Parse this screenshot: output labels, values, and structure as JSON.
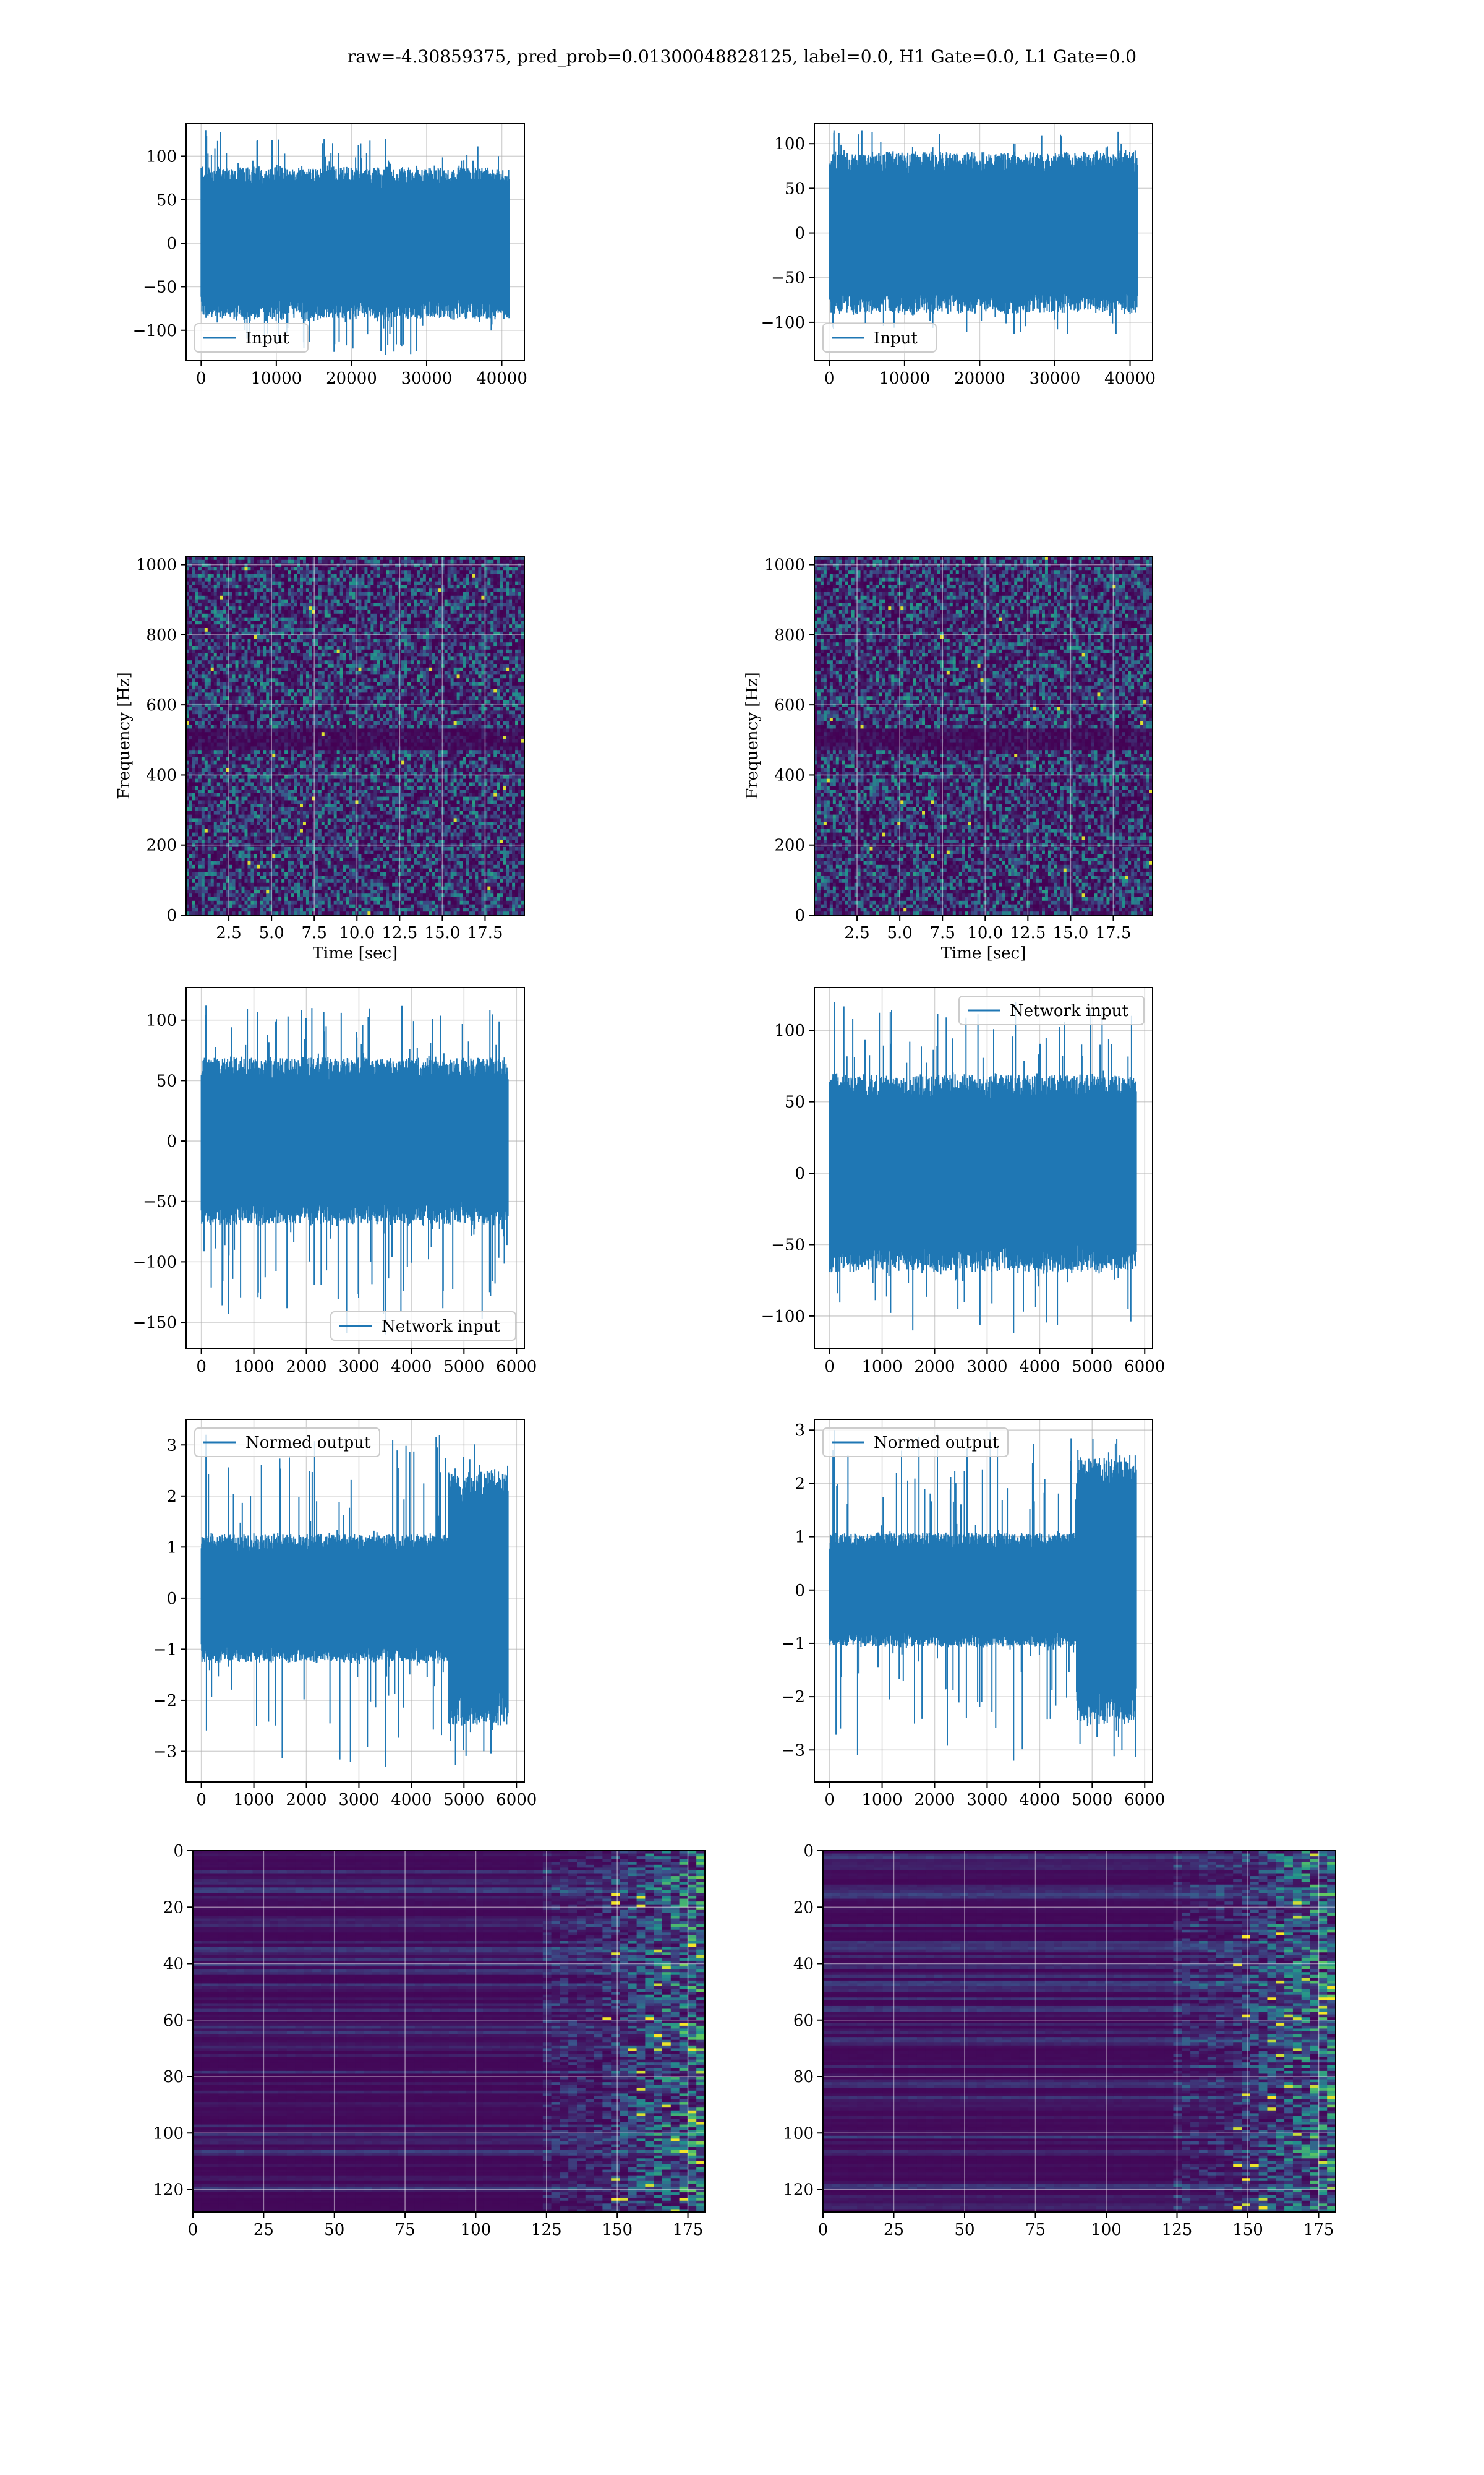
{
  "figure": {
    "suptitle": "raw=-4.30859375, pred_prob=0.01300048828125, label=0.0, H1 Gate=0.0, L1 Gate=0.0"
  },
  "colors": {
    "line": "#1f77b4",
    "grid": "#b0b0b0",
    "viridis_low": "#440154",
    "viridis_mid": "#21918c",
    "viridis_high": "#fde725"
  },
  "chart_data": [
    {
      "id": "h1-input",
      "type": "line",
      "series": [
        {
          "name": "Input",
          "length": 40960,
          "range_observed": [
            -128,
            130
          ],
          "core_amplitude": 70
        }
      ],
      "xlim": [
        -2000,
        43000
      ],
      "ylim": [
        -135,
        138
      ],
      "xticks": [
        0,
        10000,
        20000,
        30000,
        40000
      ],
      "xtick_labels": [
        "0",
        "10000",
        "20000",
        "30000",
        "40000"
      ],
      "yticks": [
        -100,
        -50,
        0,
        50,
        100
      ],
      "ytick_labels": [
        "−100",
        "−50",
        "0",
        "50",
        "100"
      ],
      "xlabel": "",
      "ylabel": "",
      "grid": true,
      "legend": "lower left"
    },
    {
      "id": "l1-input",
      "type": "line",
      "series": [
        {
          "name": "Input",
          "length": 40960,
          "range_observed": [
            -113,
            115
          ],
          "core_amplitude": 72
        }
      ],
      "xlim": [
        -2000,
        43000
      ],
      "ylim": [
        -143,
        123
      ],
      "xticks": [
        0,
        10000,
        20000,
        30000,
        40000
      ],
      "xtick_labels": [
        "0",
        "10000",
        "20000",
        "30000",
        "40000"
      ],
      "yticks": [
        -100,
        -50,
        0,
        50,
        100
      ],
      "ytick_labels": [
        "−100",
        "−50",
        "0",
        "50",
        "100"
      ],
      "xlabel": "",
      "ylabel": "",
      "grid": true,
      "legend": "lower left"
    },
    {
      "id": "h1-spectrogram",
      "type": "heatmap",
      "xlim": [
        0,
        19.8
      ],
      "ylim": [
        0,
        1024
      ],
      "xticks": [
        2.5,
        5.0,
        7.5,
        10.0,
        12.5,
        15.0,
        17.5
      ],
      "xtick_labels": [
        "2.5",
        "5.0",
        "7.5",
        "10.0",
        "12.5",
        "15.0",
        "17.5"
      ],
      "yticks": [
        0,
        200,
        400,
        600,
        800,
        1000
      ],
      "ytick_labels": [
        "0",
        "200",
        "400",
        "600",
        "800",
        "1000"
      ],
      "xlabel": "Time [sec]",
      "ylabel": "Frequency [Hz]",
      "dark_band_hz": [
        470,
        530
      ],
      "grid": true,
      "colormap": "viridis"
    },
    {
      "id": "l1-spectrogram",
      "type": "heatmap",
      "xlim": [
        0,
        19.8
      ],
      "ylim": [
        0,
        1024
      ],
      "xticks": [
        2.5,
        5.0,
        7.5,
        10.0,
        12.5,
        15.0,
        17.5
      ],
      "xtick_labels": [
        "2.5",
        "5.0",
        "7.5",
        "10.0",
        "12.5",
        "15.0",
        "17.5"
      ],
      "yticks": [
        0,
        200,
        400,
        600,
        800,
        1000
      ],
      "ytick_labels": [
        "0",
        "200",
        "400",
        "600",
        "800",
        "1000"
      ],
      "xlabel": "Time [sec]",
      "ylabel": "Frequency [Hz]",
      "dark_band_hz": [
        470,
        530
      ],
      "grid": true,
      "colormap": "viridis"
    },
    {
      "id": "h1-network-input",
      "type": "line",
      "series": [
        {
          "name": "Network input",
          "length": 5840,
          "range_observed": [
            -160,
            112
          ],
          "core_amplitude": 55
        }
      ],
      "xlim": [
        -290,
        6150
      ],
      "ylim": [
        -172,
        127
      ],
      "xticks": [
        0,
        1000,
        2000,
        3000,
        4000,
        5000,
        6000
      ],
      "xtick_labels": [
        "0",
        "1000",
        "2000",
        "3000",
        "4000",
        "5000",
        "6000"
      ],
      "yticks": [
        -150,
        -100,
        -50,
        0,
        50,
        100
      ],
      "ytick_labels": [
        "−150",
        "−100",
        "−50",
        "0",
        "50",
        "100"
      ],
      "xlabel": "",
      "ylabel": "",
      "grid": true,
      "legend": "lower right"
    },
    {
      "id": "l1-network-input",
      "type": "line",
      "series": [
        {
          "name": "Network input",
          "length": 5840,
          "range_observed": [
            -112,
            120
          ],
          "core_amplitude": 55
        }
      ],
      "xlim": [
        -290,
        6150
      ],
      "ylim": [
        -123,
        130
      ],
      "xticks": [
        0,
        1000,
        2000,
        3000,
        4000,
        5000,
        6000
      ],
      "xtick_labels": [
        "0",
        "1000",
        "2000",
        "3000",
        "4000",
        "5000",
        "6000"
      ],
      "yticks": [
        -100,
        -50,
        0,
        50,
        100
      ],
      "ytick_labels": [
        "−100",
        "−50",
        "0",
        "50",
        "100"
      ],
      "xlabel": "",
      "ylabel": "",
      "grid": true,
      "legend": "upper right"
    },
    {
      "id": "h1-normed-output",
      "type": "line",
      "series": [
        {
          "name": "Normed output",
          "length": 5840,
          "range_observed": [
            -3.3,
            3.2
          ],
          "core_amplitude": 1.0,
          "burst_start": 4700,
          "burst_amplitude": 2.0
        }
      ],
      "xlim": [
        -290,
        6150
      ],
      "ylim": [
        -3.6,
        3.5
      ],
      "xticks": [
        0,
        1000,
        2000,
        3000,
        4000,
        5000,
        6000
      ],
      "xtick_labels": [
        "0",
        "1000",
        "2000",
        "3000",
        "4000",
        "5000",
        "6000"
      ],
      "yticks": [
        -3,
        -2,
        -1,
        0,
        1,
        2,
        3
      ],
      "ytick_labels": [
        "−3",
        "−2",
        "−1",
        "0",
        "1",
        "2",
        "3"
      ],
      "xlabel": "",
      "ylabel": "",
      "grid": true,
      "legend": "upper left"
    },
    {
      "id": "l1-normed-output",
      "type": "line",
      "series": [
        {
          "name": "Normed output",
          "length": 5840,
          "range_observed": [
            -3.2,
            3.0
          ],
          "core_amplitude": 0.85,
          "burst_start": 4700,
          "burst_amplitude": 2.0
        }
      ],
      "xlim": [
        -290,
        6150
      ],
      "ylim": [
        -3.6,
        3.2
      ],
      "xticks": [
        0,
        1000,
        2000,
        3000,
        4000,
        5000,
        6000
      ],
      "xtick_labels": [
        "0",
        "1000",
        "2000",
        "3000",
        "4000",
        "5000",
        "6000"
      ],
      "yticks": [
        -3,
        -2,
        -1,
        0,
        1,
        2,
        3
      ],
      "ytick_labels": [
        "−3",
        "−2",
        "−1",
        "0",
        "1",
        "2",
        "3"
      ],
      "xlabel": "",
      "ylabel": "",
      "grid": true,
      "legend": "upper left"
    },
    {
      "id": "h1-feature-map",
      "type": "heatmap",
      "rows": 128,
      "cols": 181,
      "active_from_col": 145,
      "xlim": [
        0,
        181
      ],
      "ylim": [
        128,
        0
      ],
      "xticks": [
        0,
        25,
        50,
        75,
        100,
        125,
        150,
        175
      ],
      "xtick_labels": [
        "0",
        "25",
        "50",
        "75",
        "100",
        "125",
        "150",
        "175"
      ],
      "yticks": [
        0,
        20,
        40,
        60,
        80,
        100,
        120
      ],
      "ytick_labels": [
        "0",
        "20",
        "40",
        "60",
        "80",
        "100",
        "120"
      ],
      "xlabel": "",
      "ylabel": "",
      "grid": true,
      "colormap": "viridis"
    },
    {
      "id": "l1-feature-map",
      "type": "heatmap",
      "rows": 128,
      "cols": 181,
      "active_from_col": 145,
      "xlim": [
        0,
        181
      ],
      "ylim": [
        128,
        0
      ],
      "xticks": [
        0,
        25,
        50,
        75,
        100,
        125,
        150,
        175
      ],
      "xtick_labels": [
        "0",
        "25",
        "50",
        "75",
        "100",
        "125",
        "150",
        "175"
      ],
      "yticks": [
        0,
        20,
        40,
        60,
        80,
        100,
        120
      ],
      "ytick_labels": [
        "0",
        "20",
        "40",
        "60",
        "80",
        "100",
        "120"
      ],
      "xlabel": "",
      "ylabel": "",
      "grid": true,
      "colormap": "viridis"
    }
  ]
}
